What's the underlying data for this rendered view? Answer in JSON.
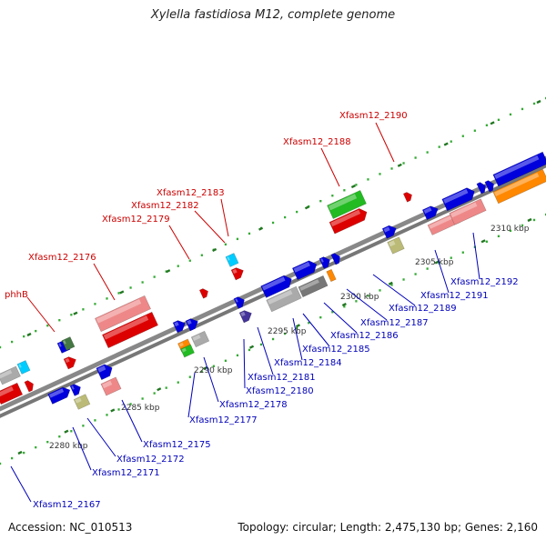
{
  "title": "Xylella fastidiosa M12, complete genome",
  "footer": {
    "accession": "Accession: NC_010513",
    "summary": "Topology: circular; Length: 2,475,130 bp; Genes: 2,160"
  },
  "colors": {
    "backbone": "#777777",
    "cds_forward": "#dd0000",
    "cds_reverse": "#0000dd",
    "rna": "#22bb22",
    "pseudo": "#ee8888",
    "gray": "#aaaaaa",
    "khaki": "#bbbb77",
    "orange": "#ff8800",
    "cyan": "#00ccff",
    "label_top": "#cc0000",
    "label_bottom": "#0000bb",
    "tick_major": "#227722",
    "tick_minor": "#33aa33"
  },
  "ruler": [
    "2280 kbp",
    "2285 kbp",
    "2290 kbp",
    "2295 kbp",
    "2300 kbp",
    "2305 kbp",
    "2310 kbp"
  ],
  "top_labels": [
    "phhB",
    "Xfasm12_2176",
    "Xfasm12_2179",
    "Xfasm12_2182",
    "Xfasm12_2183",
    "Xfasm12_2188",
    "Xfasm12_2190"
  ],
  "bottom_labels": [
    "Xfasm12_2167",
    "Xfasm12_2171",
    "Xfasm12_2172",
    "Xfasm12_2175",
    "Xfasm12_2177",
    "Xfasm12_2178",
    "Xfasm12_2180",
    "Xfasm12_2181",
    "Xfasm12_2184",
    "Xfasm12_2185",
    "Xfasm12_2186",
    "Xfasm12_2187",
    "Xfasm12_2189",
    "Xfasm12_2191",
    "Xfasm12_2192"
  ]
}
